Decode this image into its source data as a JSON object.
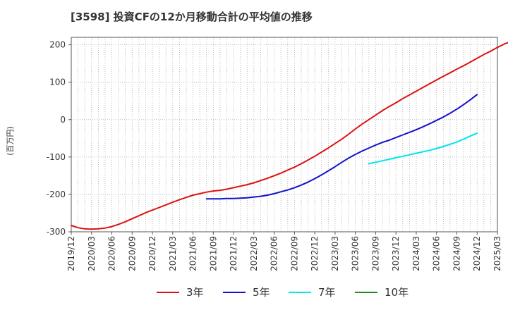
{
  "chart_data": {
    "type": "line",
    "title": "[3598]  投資CFの12か月移動合計の平均値の推移",
    "ylabel": "(百万円)",
    "xlabel": "",
    "ylim": [
      -300,
      220
    ],
    "yticks": [
      200,
      100,
      0,
      -100,
      -200,
      -300
    ],
    "xlim": [
      "2019/12",
      "2025/03"
    ],
    "xticks": [
      "2019/12",
      "2020/03",
      "2020/06",
      "2020/09",
      "2020/12",
      "2021/03",
      "2021/06",
      "2021/09",
      "2021/12",
      "2022/03",
      "2022/06",
      "2022/09",
      "2022/12",
      "2023/03",
      "2023/06",
      "2023/09",
      "2023/12",
      "2024/03",
      "2024/06",
      "2024/09",
      "2024/12",
      "2025/03"
    ],
    "grid": true,
    "legend_position": "bottom",
    "series": [
      {
        "name": "3年",
        "color": "#dd1111",
        "points": [
          [
            "2019/12",
            -283
          ],
          [
            "2020/01",
            -289
          ],
          [
            "2020/02",
            -292
          ],
          [
            "2020/03",
            -293
          ],
          [
            "2020/04",
            -292
          ],
          [
            "2020/05",
            -290
          ],
          [
            "2020/06",
            -286
          ],
          [
            "2020/07",
            -280
          ],
          [
            "2020/08",
            -273
          ],
          [
            "2020/09",
            -265
          ],
          [
            "2020/10",
            -257
          ],
          [
            "2020/11",
            -249
          ],
          [
            "2020/12",
            -242
          ],
          [
            "2021/01",
            -235
          ],
          [
            "2021/02",
            -228
          ],
          [
            "2021/03",
            -221
          ],
          [
            "2021/04",
            -214
          ],
          [
            "2021/05",
            -208
          ],
          [
            "2021/06",
            -202
          ],
          [
            "2021/07",
            -198
          ],
          [
            "2021/08",
            -194
          ],
          [
            "2021/09",
            -191
          ],
          [
            "2021/10",
            -189
          ],
          [
            "2021/11",
            -186
          ],
          [
            "2021/12",
            -182
          ],
          [
            "2022/01",
            -178
          ],
          [
            "2022/02",
            -174
          ],
          [
            "2022/03",
            -169
          ],
          [
            "2022/04",
            -163
          ],
          [
            "2022/05",
            -157
          ],
          [
            "2022/06",
            -150
          ],
          [
            "2022/07",
            -143
          ],
          [
            "2022/08",
            -135
          ],
          [
            "2022/09",
            -127
          ],
          [
            "2022/10",
            -118
          ],
          [
            "2022/11",
            -108
          ],
          [
            "2022/12",
            -98
          ],
          [
            "2023/01",
            -87
          ],
          [
            "2023/02",
            -76
          ],
          [
            "2023/03",
            -64
          ],
          [
            "2023/04",
            -52
          ],
          [
            "2023/05",
            -39
          ],
          [
            "2023/06",
            -25
          ],
          [
            "2023/07",
            -12
          ],
          [
            "2023/08",
            0
          ],
          [
            "2023/09",
            12
          ],
          [
            "2023/10",
            24
          ],
          [
            "2023/11",
            35
          ],
          [
            "2023/12",
            45
          ],
          [
            "2024/01",
            56
          ],
          [
            "2024/02",
            66
          ],
          [
            "2024/03",
            76
          ],
          [
            "2024/04",
            86
          ],
          [
            "2024/05",
            96
          ],
          [
            "2024/06",
            106
          ],
          [
            "2024/07",
            116
          ],
          [
            "2024/08",
            125
          ],
          [
            "2024/09",
            135
          ],
          [
            "2024/10",
            144
          ],
          [
            "2024/11",
            154
          ],
          [
            "2024/12",
            164
          ],
          [
            "2025/01",
            174
          ],
          [
            "2025/02",
            183
          ],
          [
            "2025/03",
            193
          ],
          [
            "2025/04",
            202
          ],
          [
            "2025/05",
            209
          ]
        ]
      },
      {
        "name": "5年",
        "color": "#1111cc",
        "points": [
          [
            "2021/08",
            -212
          ],
          [
            "2021/09",
            -212
          ],
          [
            "2021/10",
            -212
          ],
          [
            "2021/11",
            -211
          ],
          [
            "2021/12",
            -211
          ],
          [
            "2022/01",
            -210
          ],
          [
            "2022/02",
            -209
          ],
          [
            "2022/03",
            -207
          ],
          [
            "2022/04",
            -205
          ],
          [
            "2022/05",
            -202
          ],
          [
            "2022/06",
            -198
          ],
          [
            "2022/07",
            -193
          ],
          [
            "2022/08",
            -188
          ],
          [
            "2022/09",
            -182
          ],
          [
            "2022/10",
            -175
          ],
          [
            "2022/11",
            -167
          ],
          [
            "2022/12",
            -158
          ],
          [
            "2023/01",
            -148
          ],
          [
            "2023/02",
            -137
          ],
          [
            "2023/03",
            -126
          ],
          [
            "2023/04",
            -114
          ],
          [
            "2023/05",
            -103
          ],
          [
            "2023/06",
            -93
          ],
          [
            "2023/07",
            -84
          ],
          [
            "2023/08",
            -76
          ],
          [
            "2023/09",
            -68
          ],
          [
            "2023/10",
            -61
          ],
          [
            "2023/11",
            -55
          ],
          [
            "2023/12",
            -48
          ],
          [
            "2024/01",
            -41
          ],
          [
            "2024/02",
            -34
          ],
          [
            "2024/03",
            -27
          ],
          [
            "2024/04",
            -19
          ],
          [
            "2024/05",
            -11
          ],
          [
            "2024/06",
            -2
          ],
          [
            "2024/07",
            7
          ],
          [
            "2024/08",
            17
          ],
          [
            "2024/09",
            28
          ],
          [
            "2024/10",
            40
          ],
          [
            "2024/11",
            53
          ],
          [
            "2024/12",
            67
          ]
        ]
      },
      {
        "name": "7年",
        "color": "#00e5ee",
        "points": [
          [
            "2023/08",
            -118
          ],
          [
            "2023/09",
            -114
          ],
          [
            "2023/10",
            -110
          ],
          [
            "2023/11",
            -106
          ],
          [
            "2023/12",
            -102
          ],
          [
            "2024/01",
            -98
          ],
          [
            "2024/02",
            -94
          ],
          [
            "2024/03",
            -90
          ],
          [
            "2024/04",
            -86
          ],
          [
            "2024/05",
            -82
          ],
          [
            "2024/06",
            -77
          ],
          [
            "2024/07",
            -72
          ],
          [
            "2024/08",
            -66
          ],
          [
            "2024/09",
            -60
          ],
          [
            "2024/10",
            -52
          ],
          [
            "2024/11",
            -44
          ],
          [
            "2024/12",
            -36
          ]
        ]
      },
      {
        "name": "10年",
        "color": "#228b22",
        "points": []
      }
    ]
  }
}
